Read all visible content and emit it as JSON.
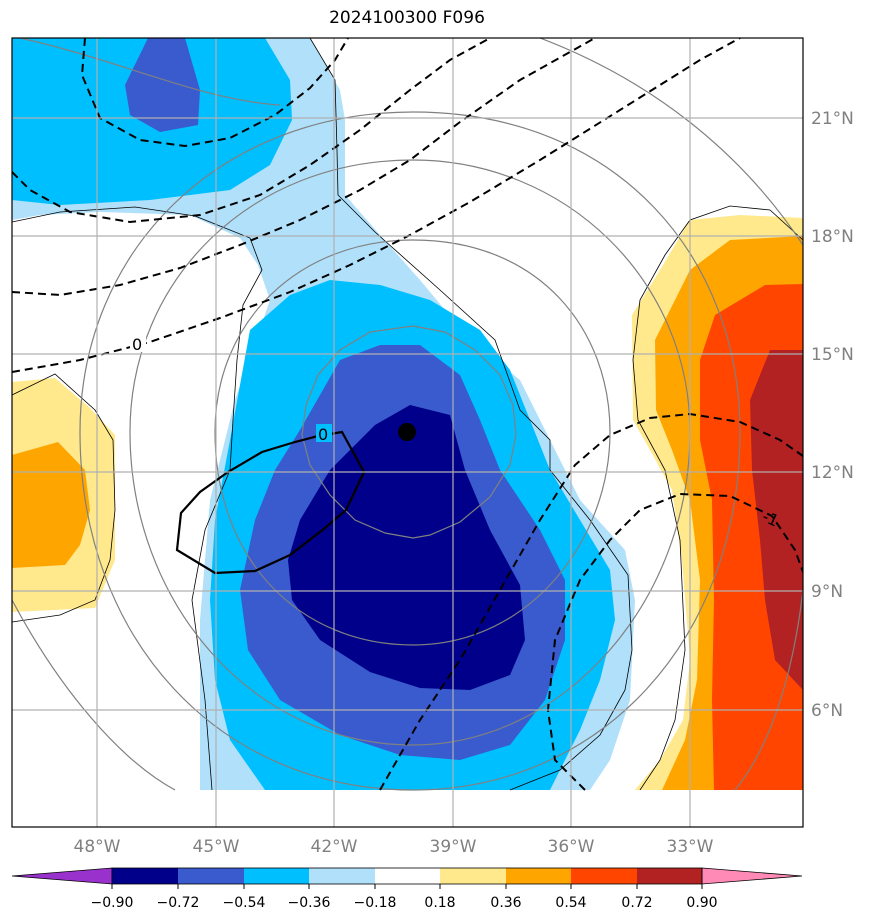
{
  "title": "2024100300 F096",
  "lon_labels": [
    "48°W",
    "45°W",
    "42°W",
    "39°W",
    "36°W",
    "33°W"
  ],
  "lat_labels": [
    "21°N",
    "18°N",
    "15°N",
    "12°N",
    "9°N",
    "6°N"
  ],
  "contour_labels": [
    "0",
    "0",
    "-1"
  ],
  "colorbar": {
    "ticks": [
      "−0.90",
      "−0.72",
      "−0.54",
      "−0.36",
      "−0.18",
      "0.18",
      "0.36",
      "0.54",
      "0.72",
      "0.90"
    ],
    "colors": [
      "#9932cc",
      "#00008b",
      "#3a5bcd",
      "#00bfff",
      "#b0e0fa",
      "#ffffff",
      "#ffe98c",
      "#ffa500",
      "#ff4500",
      "#b22222",
      "#ff8ab6"
    ]
  },
  "colors": {
    "n090": "#00008b",
    "n072": "#3a5bcd",
    "n054": "#00bfff",
    "n036": "#b0e0fa",
    "p018": "#ffe98c",
    "p036": "#ffa500",
    "p054": "#ff4500",
    "p072": "#b22222"
  }
}
